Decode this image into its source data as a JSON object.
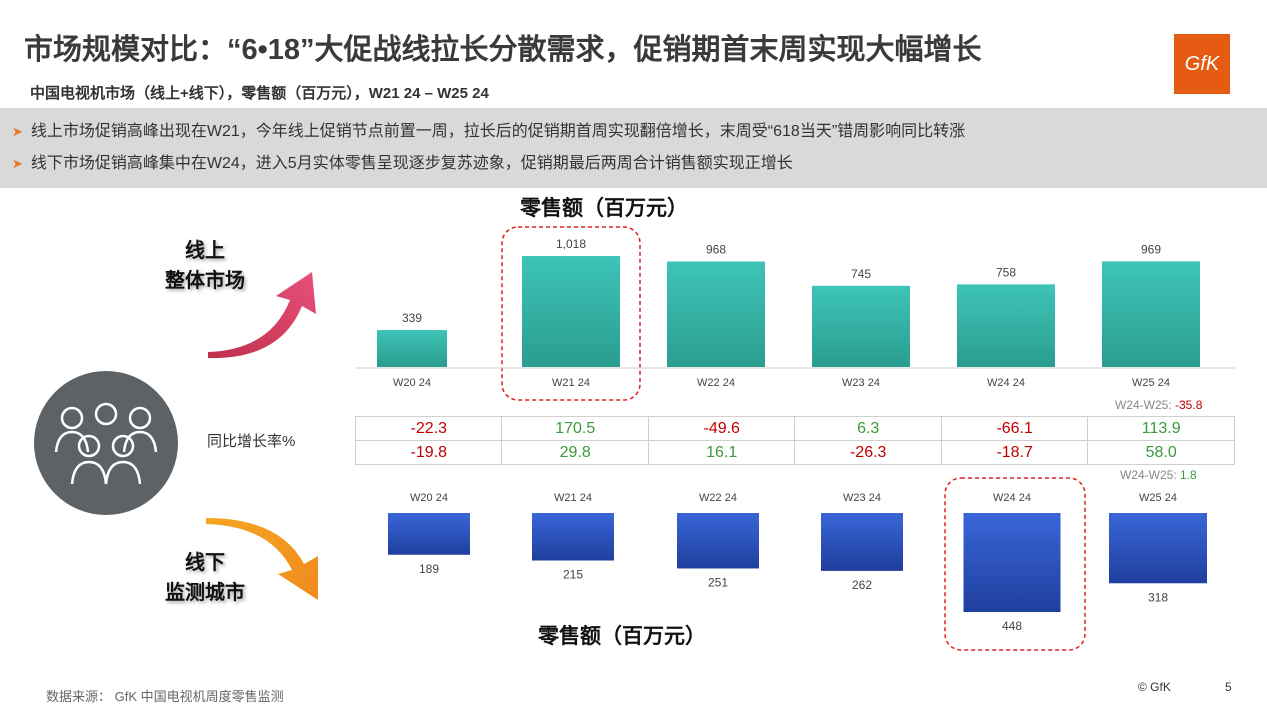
{
  "title": "市场规模对比：“6•18”大促战线拉长分散需求，促销期首末周实现大幅增长",
  "subtitle": "中国电视机市场（线上+线下），零售额（百万元），W21 24 – W25 24",
  "logo": "GfK",
  "bullets": [
    "线上市场促销高峰出现在W21，今年线上促销节点前置一周，拉长后的促销期首周实现翻倍增长，末周受“618当天”错周影响同比转涨",
    "线下市场促销高峰集中在W24，进入5月实体零售呈现逐步复苏迹象，促销期最后两周合计销售额实现正增长"
  ],
  "online_label": [
    "线上",
    "整体市场"
  ],
  "offline_label": [
    "线下",
    "监测城市"
  ],
  "yoy_label": "同比增长率%",
  "note_online": {
    "label": "W24-W25: ",
    "value": "-35.8"
  },
  "note_offline": {
    "label": "W24-W25: ",
    "value": "1.8"
  },
  "footer": {
    "source": "数据来源： GfK 中国电视机周度零售监测",
    "copyright": "© GfK",
    "page": "5"
  },
  "colors": {
    "online_bar": "#3ec4b8",
    "offline_bar": "#2e55c8",
    "highlight": "#e02020",
    "negative": "#c00000",
    "positive": "#3a9a3a",
    "accent": "#e55b13"
  },
  "chart_data": [
    {
      "type": "bar",
      "title": "零售额（百万元）",
      "categories": [
        "W20 24",
        "W21 24",
        "W22 24",
        "W23 24",
        "W24 24",
        "W25 24"
      ],
      "values": [
        339,
        1018,
        968,
        745,
        758,
        969
      ],
      "highlight": "W21 24"
    },
    {
      "type": "bar",
      "title": "零售额（百万元）",
      "categories": [
        "W20 24",
        "W21 24",
        "W22 24",
        "W23 24",
        "W24 24",
        "W25 24"
      ],
      "values": [
        189,
        215,
        251,
        262,
        448,
        318
      ],
      "orientation": "downward",
      "highlight": "W24 24"
    },
    {
      "type": "table",
      "title": "同比增长率%",
      "columns": [
        "W20 24",
        "W21 24",
        "W22 24",
        "W23 24",
        "W24 24",
        "W25 24"
      ],
      "rows": [
        [
          -22.3,
          170.5,
          -49.6,
          6.3,
          -66.1,
          113.9
        ],
        [
          -19.8,
          29.8,
          16.1,
          -26.3,
          -18.7,
          58.0
        ]
      ],
      "row_strings": [
        [
          "-22.3",
          "170.5",
          "-49.6",
          "6.3",
          "-66.1",
          "113.9"
        ],
        [
          "-19.8",
          "29.8",
          "16.1",
          "-26.3",
          "-18.7",
          "58.0"
        ]
      ]
    }
  ]
}
